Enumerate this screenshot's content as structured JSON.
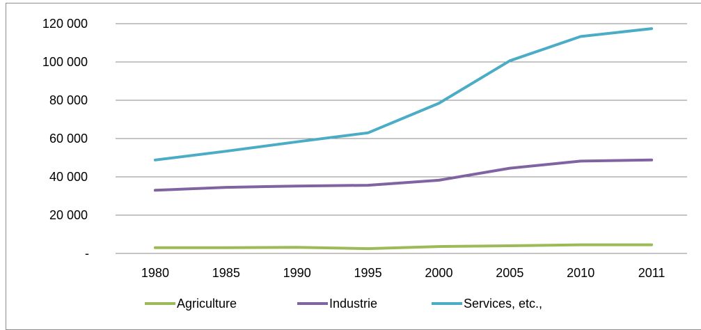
{
  "chart_data": {
    "type": "line",
    "categories": [
      "1980",
      "1985",
      "1990",
      "1995",
      "2000",
      "2005",
      "2010",
      "2011"
    ],
    "series": [
      {
        "name": "Agriculture",
        "color": "#9BBB59",
        "values": [
          3000,
          3000,
          3200,
          2500,
          3600,
          4000,
          4500,
          4500
        ]
      },
      {
        "name": "Industrie",
        "color": "#8064A2",
        "values": [
          33000,
          34500,
          35200,
          35600,
          38200,
          44500,
          48200,
          48800
        ]
      },
      {
        "name": "Services, etc.,",
        "color": "#4BACC6",
        "values": [
          48800,
          53400,
          58300,
          63000,
          78400,
          100600,
          113300,
          117400
        ]
      }
    ],
    "ylim": [
      0,
      120000
    ],
    "yticks": [
      {
        "value": 0,
        "label": "-"
      },
      {
        "value": 20000,
        "label": "20 000"
      },
      {
        "value": 40000,
        "label": "40 000"
      },
      {
        "value": 60000,
        "label": "60 000"
      },
      {
        "value": 80000,
        "label": "80 000"
      },
      {
        "value": 100000,
        "label": "100 000"
      },
      {
        "value": 120000,
        "label": "120 000"
      }
    ],
    "grid": true,
    "legend": "bottom",
    "title": "",
    "xlabel": "",
    "ylabel": ""
  }
}
